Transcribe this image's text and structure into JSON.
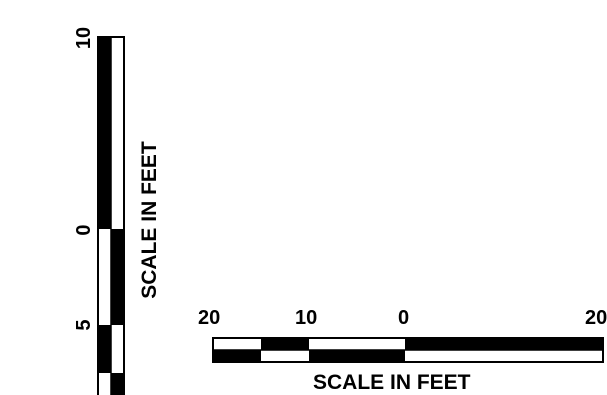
{
  "vertical_scale": {
    "tick_labels": [
      "10",
      "0",
      "5"
    ],
    "title": "SCALE IN FEET"
  },
  "horizontal_scale": {
    "tick_labels": [
      "20",
      "10",
      "0",
      "20"
    ],
    "title": "SCALE IN FEET"
  },
  "colors": {
    "ink": "#000000",
    "paper": "#ffffff"
  }
}
